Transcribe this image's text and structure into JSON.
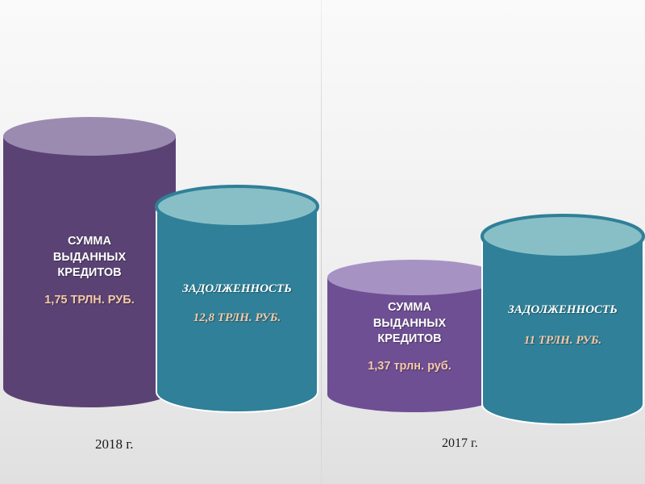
{
  "colors": {
    "purple_dark": "#5a4374",
    "purple_top": "#9c8bb0",
    "purple_mid": "#6e4f93",
    "purple_mid_top": "#a792c4",
    "teal_body": "#2f8098",
    "teal_top": "#88bfc7",
    "value_color": "#f6c9a8"
  },
  "groups": [
    {
      "year": "2018 г.",
      "issued": {
        "title": "СУММА\nВЫДАННЫХ\nКРЕДИТОВ",
        "value": "1,75 ТРЛН. РУБ."
      },
      "debt": {
        "title": "ЗАДОЛЖЕННОСТЬ",
        "value": "12,8 ТРЛН. РУБ."
      }
    },
    {
      "year": "2017 г.",
      "issued": {
        "title": "СУММА\nВЫДАННЫХ\nКРЕДИТОВ",
        "value": "1,37 трлн. руб."
      },
      "debt": {
        "title": "ЗАДОЛЖЕННОСТЬ",
        "value": "11 ТРЛН. РУБ."
      }
    }
  ]
}
